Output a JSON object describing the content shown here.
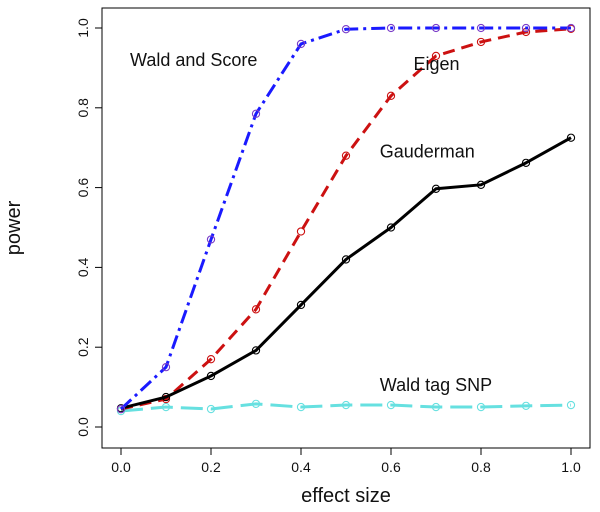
{
  "chart_data": {
    "type": "line",
    "xlabel": "effect size",
    "ylabel": "power",
    "xlim": [
      0,
      1
    ],
    "ylim": [
      0,
      1
    ],
    "x_ticks": [
      "0.0",
      "0.2",
      "0.4",
      "0.6",
      "0.8",
      "1.0"
    ],
    "y_ticks": [
      "0.0",
      "0.2",
      "0.4",
      "0.6",
      "0.8",
      "1.0"
    ],
    "grid": false,
    "x": [
      0.0,
      0.1,
      0.2,
      0.3,
      0.4,
      0.5,
      0.6,
      0.7,
      0.8,
      0.9,
      1.0
    ],
    "series": [
      {
        "color": "#1a1aff",
        "dash": "dashdot",
        "marker_color": "#7a3cc8",
        "values": [
          0.045,
          0.15,
          0.47,
          0.785,
          0.96,
          0.997,
          1.0,
          1.0,
          1.0,
          1.0,
          1.0
        ]
      },
      {
        "color": "#cc1111",
        "dash": "dashed",
        "marker_color": "#cc1111",
        "values": [
          0.045,
          0.07,
          0.17,
          0.295,
          0.49,
          0.68,
          0.83,
          0.93,
          0.965,
          0.99,
          0.998
        ]
      },
      {
        "color": "#000000",
        "dash": "solid",
        "marker_color": "#000000",
        "values": [
          0.047,
          0.075,
          0.128,
          0.192,
          0.306,
          0.42,
          0.5,
          0.597,
          0.607,
          0.662,
          0.725
        ]
      },
      {
        "color": "#66e0e0",
        "dash": "longdash",
        "marker_color": "#66e0e0",
        "values": [
          0.04,
          0.05,
          0.045,
          0.058,
          0.05,
          0.055,
          0.055,
          0.05,
          0.05,
          0.053,
          0.055
        ]
      }
    ],
    "annotations": [
      {
        "text": "Wald and Score",
        "x": 0.02,
        "y": 0.905
      },
      {
        "text": "Eigen",
        "x": 0.65,
        "y": 0.895
      },
      {
        "text": "Gauderman",
        "x": 0.575,
        "y": 0.675
      },
      {
        "text": "Wald tag SNP",
        "x": 0.575,
        "y": 0.09
      }
    ]
  }
}
